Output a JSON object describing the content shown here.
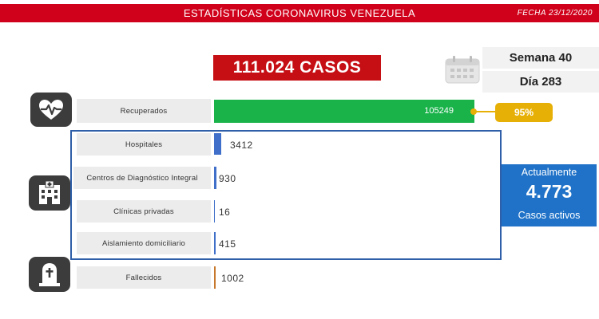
{
  "header": {
    "title": "ESTADÍSTICAS CORONAVIRUS VENEZUELA",
    "date": "FECHA 23/12/2020"
  },
  "summary": {
    "total_cases": "111.024 CASOS",
    "week": "Semana 40",
    "day": "Día 283"
  },
  "recovered": {
    "label": "Recuperados",
    "value": "105249",
    "percent": "95%"
  },
  "active_breakdown": [
    {
      "label": "Hospitales",
      "value": "3412",
      "bar_color": "#3f6fc9"
    },
    {
      "label": "Centros de Diagnóstico Integral",
      "value": "930",
      "bar_color": "#3f6fc9"
    },
    {
      "label": "Clínicas privadas",
      "value": "16",
      "bar_color": "#3f6fc9"
    },
    {
      "label": "Aislamiento domiciliario",
      "value": "415",
      "bar_color": "#3f6fc9"
    }
  ],
  "active_total": {
    "title": "Actualmente",
    "value": "4.773",
    "subtitle": "Casos activos"
  },
  "deceased": {
    "label": "Fallecidos",
    "value": "1002",
    "bar_color": "#c8782c"
  },
  "icons": {
    "recovered": "heart-pulse-icon",
    "active": "hospital-building-icon",
    "deceased": "tombstone-icon",
    "calendar": "calendar-icon"
  },
  "colors": {
    "header": "#d0021b",
    "total": "#c50f14",
    "recovered_bar": "#19b34a",
    "percent_badge": "#e7b007",
    "active_box": "#1f72c8",
    "frame": "#2f5fa8"
  }
}
